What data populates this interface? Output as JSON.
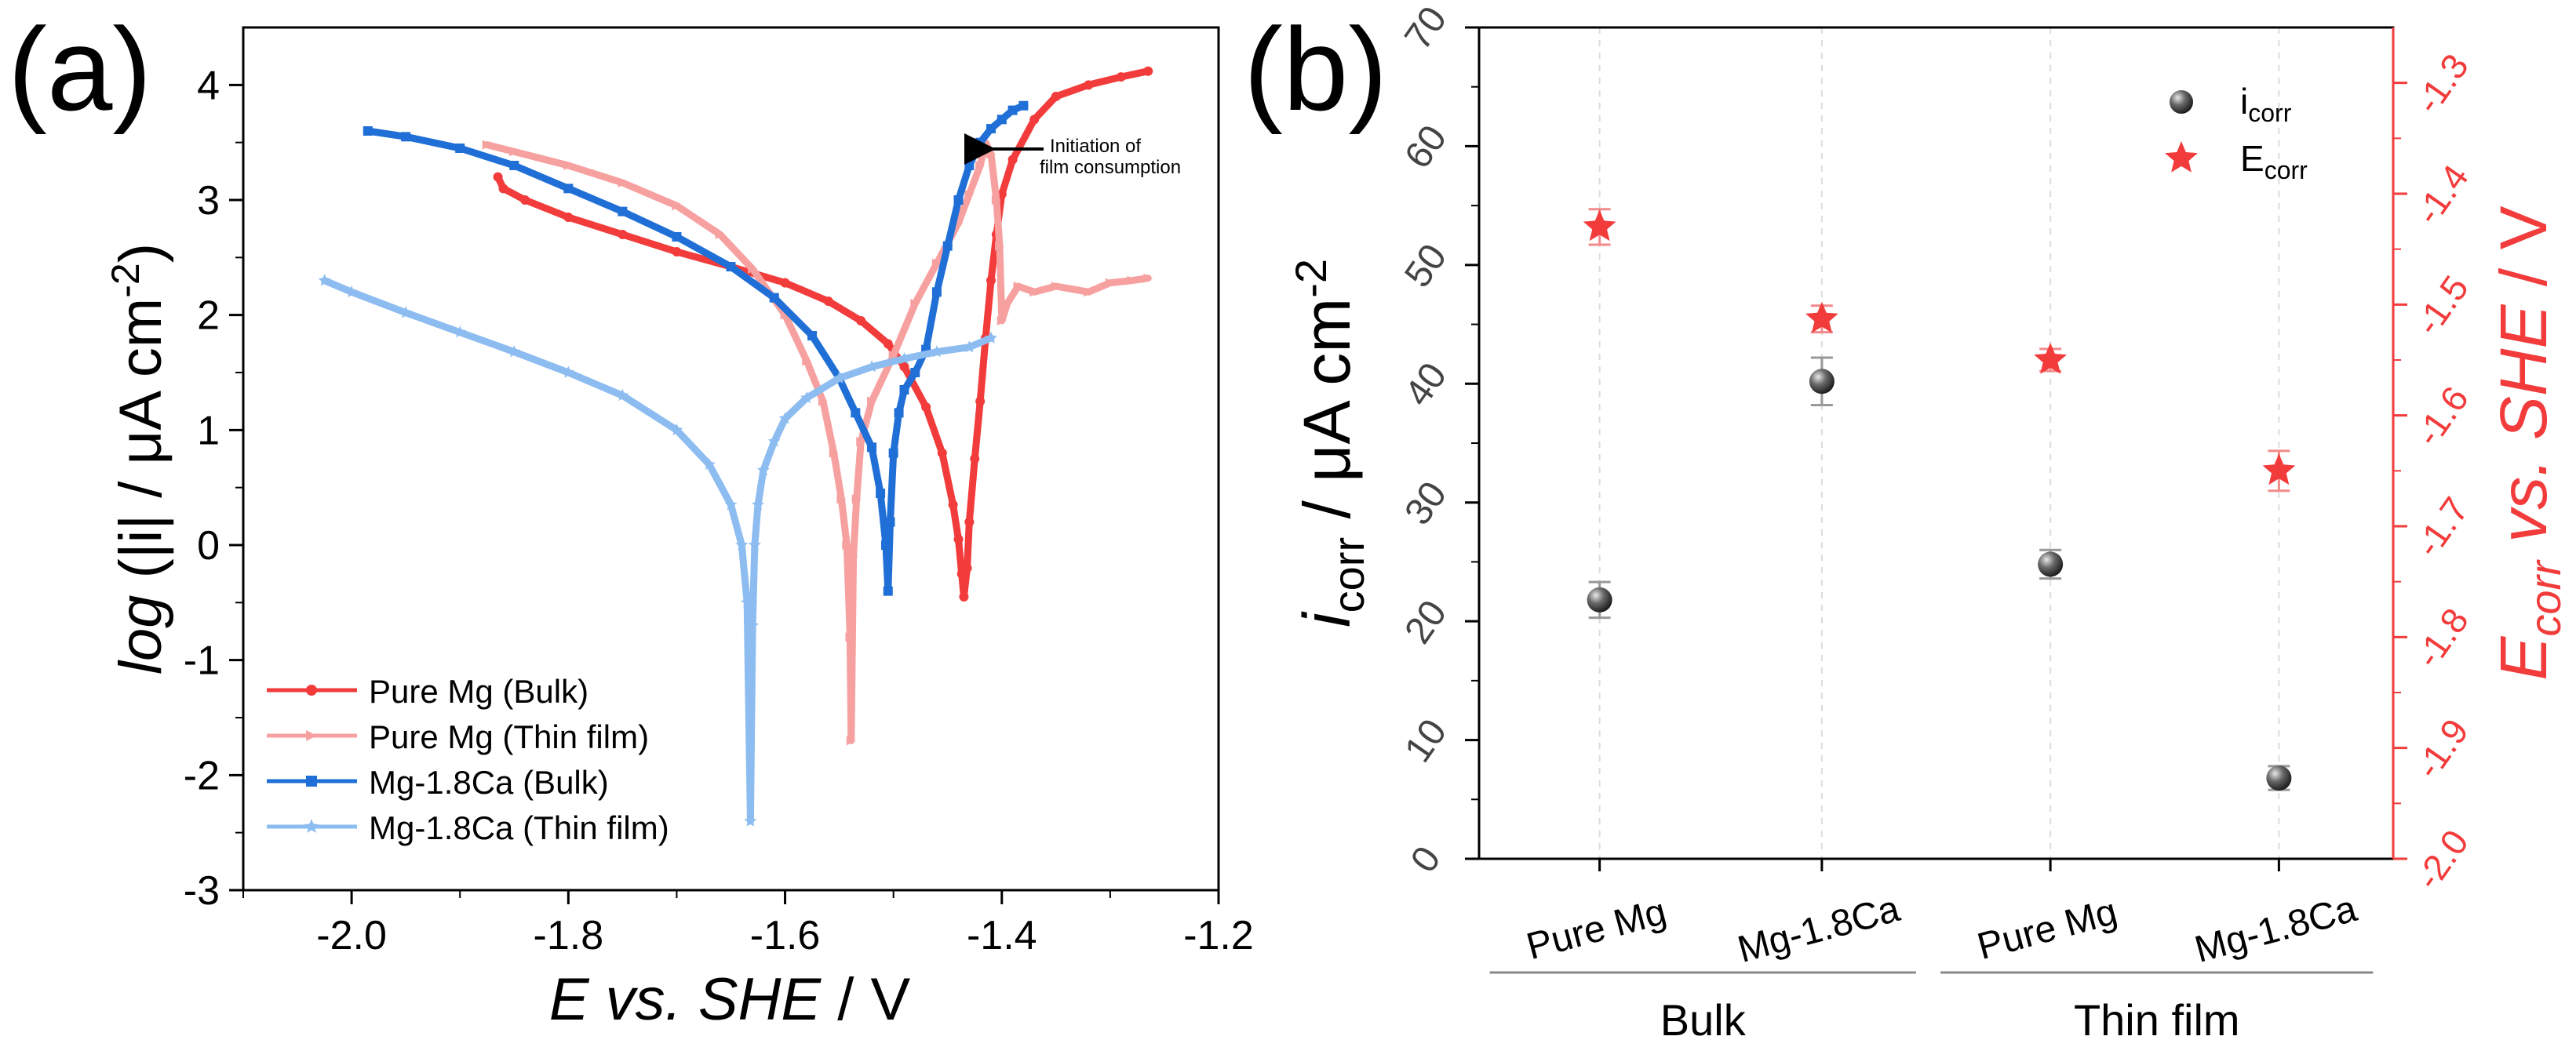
{
  "panel_labels": {
    "a": "(a)",
    "b": "(b)"
  },
  "chart_data": [
    {
      "type": "line",
      "panel": "(a)",
      "xlabel": {
        "italic": "E vs. SHE",
        "plain": " / V"
      },
      "ylabel": {
        "italic": "log",
        "plain": " (|i| / μA cm",
        "sup": "-2",
        "close": ")"
      },
      "xlim": [
        -2.1,
        -1.2
      ],
      "ylim": [
        -3,
        4.5
      ],
      "xticks": [
        -2.0,
        -1.8,
        -1.6,
        -1.4,
        -1.2
      ],
      "xtick_labels": [
        "-2.0",
        "-1.8",
        "-1.6",
        "-1.4",
        "-1.2"
      ],
      "yticks": [
        -3,
        -2,
        -1,
        0,
        1,
        2,
        3,
        4
      ],
      "ytick_labels": [
        "-3",
        "-2",
        "-1",
        "0",
        "1",
        "2",
        "3",
        "4"
      ],
      "annotation": {
        "text_line1": "Initiation of",
        "text_line2": "film consumption",
        "points_to": [
          -1.415,
          3.5
        ]
      },
      "legend_position": "bottom-left",
      "series": [
        {
          "name": "Pure Mg (Bulk)",
          "color": "#f23b3b",
          "marker": "circle",
          "x": [
            -1.865,
            -1.86,
            -1.84,
            -1.8,
            -1.75,
            -1.7,
            -1.65,
            -1.6,
            -1.56,
            -1.53,
            -1.505,
            -1.49,
            -1.47,
            -1.455,
            -1.445,
            -1.44,
            -1.437,
            -1.435,
            -1.432,
            -1.43,
            -1.425,
            -1.42,
            -1.415,
            -1.41,
            -1.405,
            -1.4,
            -1.39,
            -1.37,
            -1.35,
            -1.32,
            -1.29,
            -1.265
          ],
          "y": [
            3.2,
            3.1,
            3.0,
            2.85,
            2.7,
            2.55,
            2.42,
            2.28,
            2.12,
            1.95,
            1.75,
            1.55,
            1.2,
            0.8,
            0.35,
            0.05,
            -0.25,
            -0.45,
            -0.2,
            0.2,
            0.75,
            1.25,
            1.8,
            2.3,
            2.7,
            3.05,
            3.35,
            3.7,
            3.9,
            4.0,
            4.07,
            4.12
          ]
        },
        {
          "name": "Pure Mg (Thin film)",
          "color": "#f7a0a0",
          "marker": "triangle-right",
          "x": [
            -1.875,
            -1.85,
            -1.8,
            -1.75,
            -1.7,
            -1.66,
            -1.63,
            -1.6,
            -1.58,
            -1.565,
            -1.555,
            -1.548,
            -1.543,
            -1.54,
            -1.539,
            -1.537,
            -1.534,
            -1.53,
            -1.52,
            -1.5,
            -1.48,
            -1.46,
            -1.44,
            -1.43,
            -1.42,
            -1.415,
            -1.41,
            -1.405,
            -1.402,
            -1.4,
            -1.395,
            -1.385,
            -1.37,
            -1.35,
            -1.32,
            -1.3,
            -1.28,
            -1.265
          ],
          "y": [
            3.48,
            3.42,
            3.3,
            3.15,
            2.95,
            2.7,
            2.4,
            2.0,
            1.6,
            1.25,
            0.8,
            0.4,
            0.0,
            -0.8,
            -1.7,
            -0.1,
            0.4,
            0.9,
            1.25,
            1.65,
            2.1,
            2.45,
            2.8,
            3.05,
            3.3,
            3.5,
            3.4,
            3.0,
            2.6,
            1.95,
            2.1,
            2.25,
            2.2,
            2.25,
            2.2,
            2.28,
            2.3,
            2.32
          ]
        },
        {
          "name": "Mg-1.8Ca (Bulk)",
          "color": "#1f6fd6",
          "marker": "square",
          "x": [
            -1.985,
            -1.95,
            -1.9,
            -1.85,
            -1.8,
            -1.75,
            -1.7,
            -1.65,
            -1.61,
            -1.575,
            -1.55,
            -1.535,
            -1.52,
            -1.512,
            -1.507,
            -1.505,
            -1.503,
            -1.5,
            -1.495,
            -1.49,
            -1.48,
            -1.47,
            -1.46,
            -1.45,
            -1.44,
            -1.43,
            -1.42,
            -1.41,
            -1.4,
            -1.39,
            -1.38
          ],
          "y": [
            3.6,
            3.55,
            3.45,
            3.3,
            3.1,
            2.9,
            2.68,
            2.42,
            2.15,
            1.82,
            1.45,
            1.15,
            0.85,
            0.45,
            0.0,
            -0.4,
            0.2,
            0.8,
            1.15,
            1.35,
            1.5,
            1.7,
            2.2,
            2.6,
            3.0,
            3.3,
            3.5,
            3.62,
            3.7,
            3.78,
            3.82
          ]
        },
        {
          "name": "Mg-1.8Ca (Thin film)",
          "color": "#8cbcf0",
          "marker": "star",
          "x": [
            -2.025,
            -2.0,
            -1.95,
            -1.9,
            -1.85,
            -1.8,
            -1.75,
            -1.7,
            -1.67,
            -1.65,
            -1.64,
            -1.635,
            -1.632,
            -1.63,
            -1.628,
            -1.625,
            -1.62,
            -1.61,
            -1.6,
            -1.58,
            -1.55,
            -1.52,
            -1.49,
            -1.46,
            -1.43,
            -1.41
          ],
          "y": [
            2.3,
            2.2,
            2.02,
            1.85,
            1.68,
            1.5,
            1.3,
            1.0,
            0.7,
            0.35,
            0.0,
            -0.5,
            -2.4,
            -0.7,
            0.0,
            0.35,
            0.65,
            0.9,
            1.1,
            1.28,
            1.45,
            1.55,
            1.62,
            1.68,
            1.72,
            1.8
          ]
        }
      ]
    },
    {
      "type": "scatter",
      "panel": "(b)",
      "categories": [
        "Pure Mg",
        "Mg-1.8Ca",
        "Pure Mg",
        "Mg-1.8Ca"
      ],
      "groups": [
        {
          "label": "Bulk",
          "categories": [
            0,
            1
          ]
        },
        {
          "label": "Thin film",
          "categories": [
            2,
            3
          ]
        }
      ],
      "ylabel_left": {
        "italic": "i",
        "sub": "corr",
        "plain": " / μA cm",
        "sup": "-2"
      },
      "ylabel_right": {
        "italic": "E",
        "sub": "corr",
        "italic2": " vs. SHE",
        "plain": " / V"
      },
      "ylim_left": [
        0,
        70
      ],
      "yticks_left": [
        0,
        10,
        20,
        30,
        40,
        50,
        60,
        70
      ],
      "ytick_labels_left": [
        "0",
        "10",
        "20",
        "30",
        "40",
        "50",
        "60",
        "70"
      ],
      "ylim_right": [
        -2.0,
        -1.25
      ],
      "yticks_right": [
        -2.0,
        -1.9,
        -1.8,
        -1.7,
        -1.6,
        -1.5,
        -1.4,
        -1.3
      ],
      "ytick_labels_right": [
        "-2.0",
        "-1.9",
        "-1.8",
        "-1.7",
        "-1.6",
        "-1.5",
        "-1.4",
        "-1.3"
      ],
      "right_axis_color": "#f23b3b",
      "legend_position": "top-right",
      "series": [
        {
          "name": "i",
          "name_sub": "corr",
          "axis": "left",
          "color": "#555555",
          "marker": "sphere",
          "values": [
            21.8,
            40.2,
            24.8,
            6.8
          ],
          "errors": [
            1.5,
            2.0,
            1.2,
            1.0
          ]
        },
        {
          "name": "E",
          "name_sub": "corr",
          "axis": "right",
          "color": "#f23b3b",
          "marker": "star",
          "values": [
            -1.43,
            -1.513,
            -1.55,
            -1.65
          ],
          "errors": [
            0.016,
            0.012,
            0.01,
            0.018
          ]
        }
      ]
    }
  ]
}
